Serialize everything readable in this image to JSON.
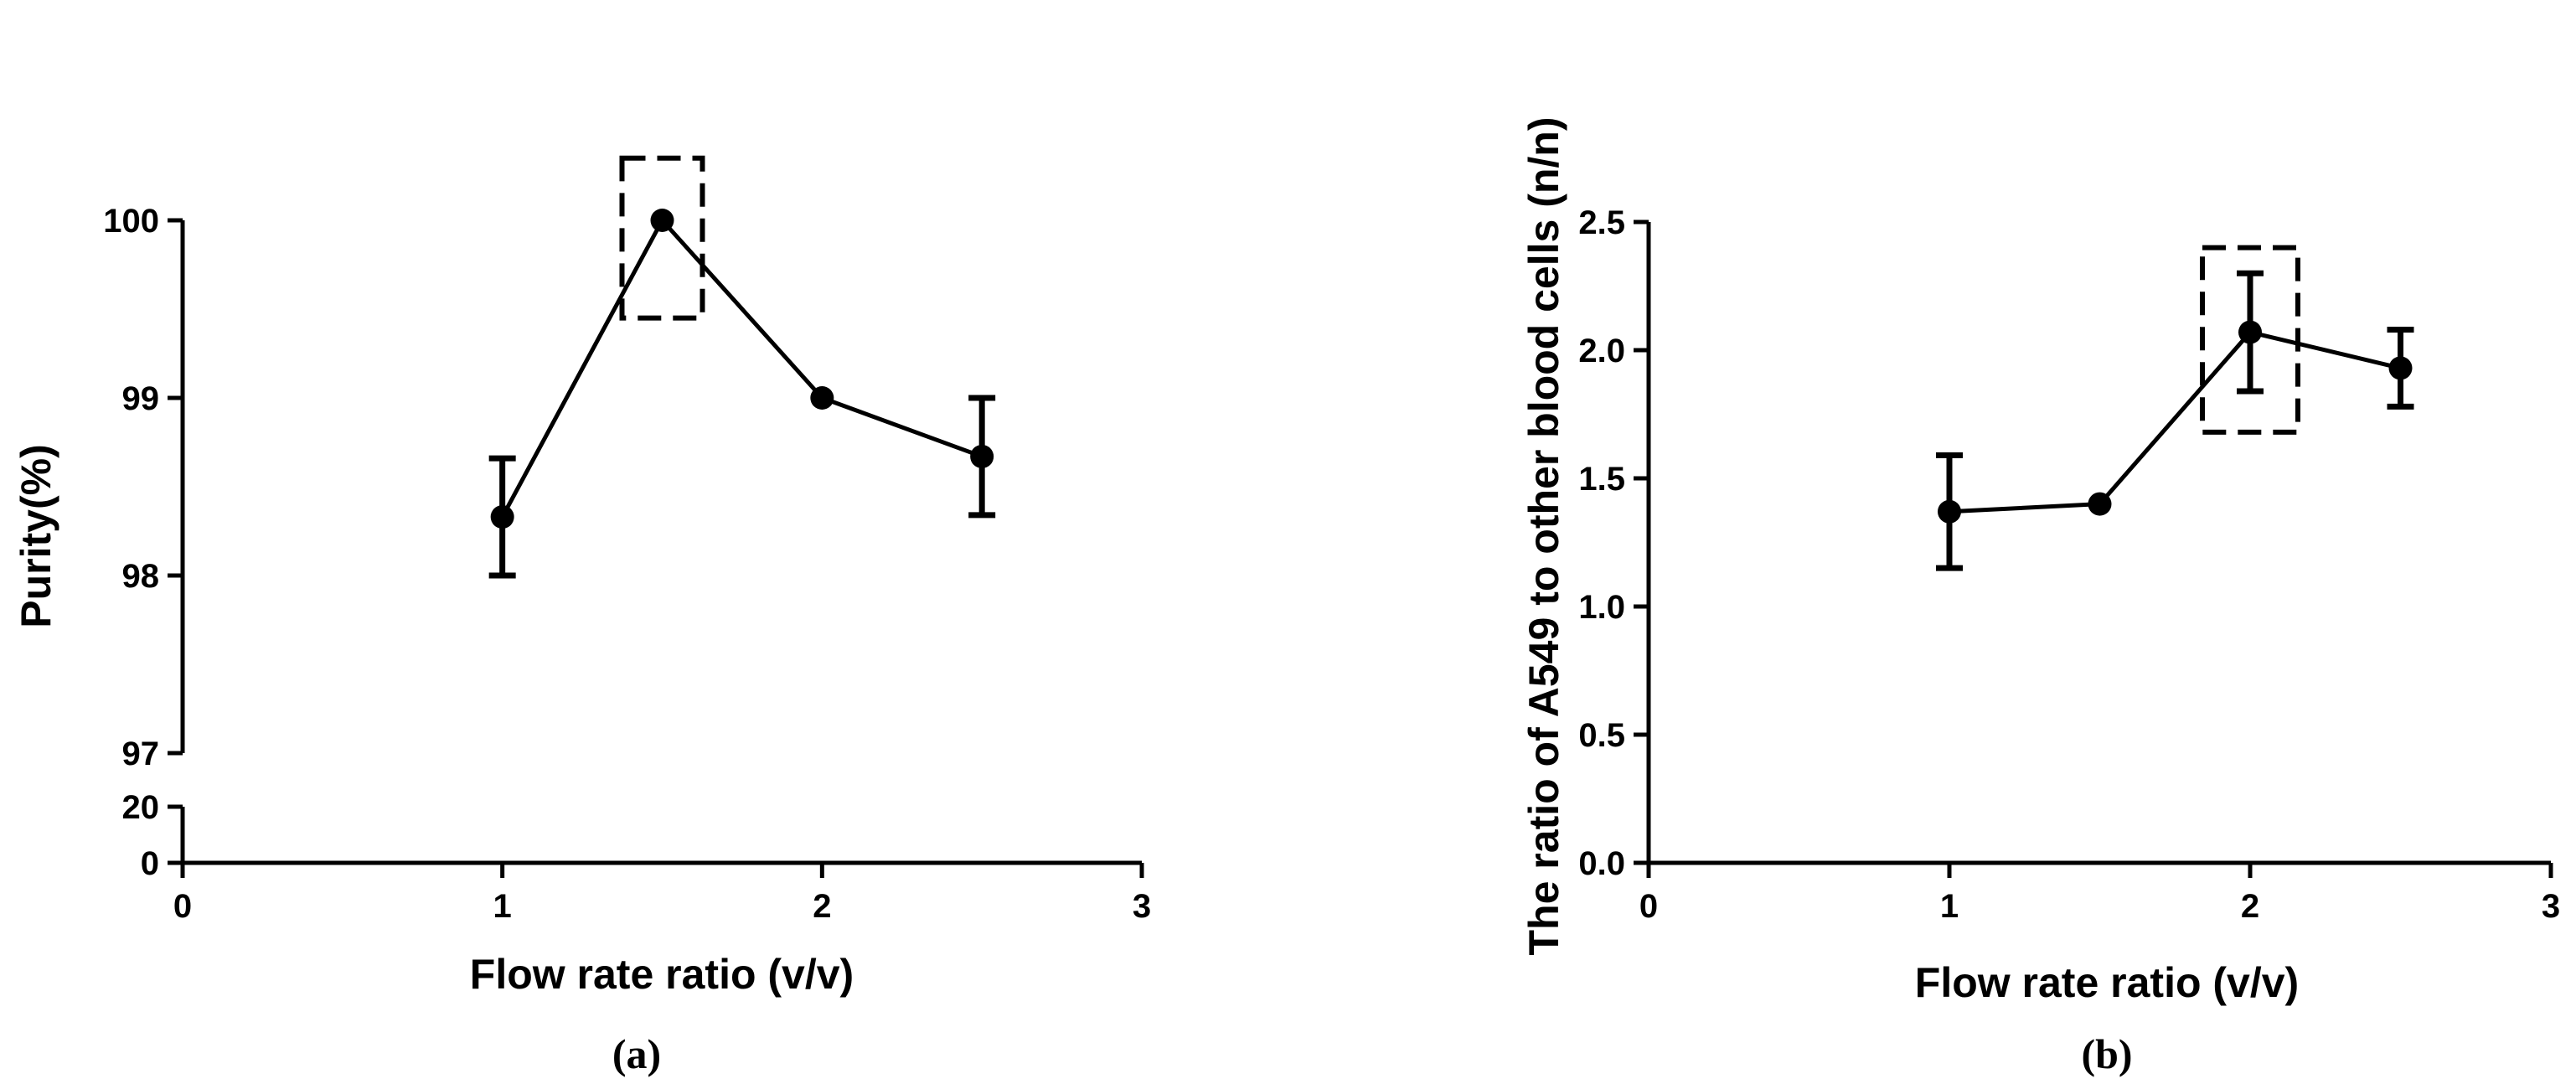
{
  "chart_data": [
    {
      "type": "line",
      "panel_label": "(a)",
      "xlabel": "Flow rate ratio (v/v)",
      "ylabel": "Purity(%)",
      "xlim": [
        0,
        3
      ],
      "x_ticks": [
        "0",
        "1",
        "2",
        "3"
      ],
      "y_axis_break": true,
      "y_ticks_upper": [
        "97",
        "98",
        "99",
        "100"
      ],
      "ylim_upper": [
        97,
        100
      ],
      "y_ticks_lower": [
        "0",
        "20"
      ],
      "ylim_lower": [
        0,
        20
      ],
      "series": [
        {
          "name": "Purity",
          "x": [
            1,
            1.5,
            2,
            2.5
          ],
          "y": [
            98.33,
            100,
            99,
            98.67
          ],
          "error": [
            0.33,
            0,
            0,
            0.33
          ]
        }
      ],
      "highlight": {
        "x": 1.5,
        "y_range": [
          99.45,
          100.35
        ],
        "style": "dashed box"
      }
    },
    {
      "type": "line",
      "panel_label": "(b)",
      "xlabel": "Flow rate ratio (v/v)",
      "ylabel": "The ratio of A549 to other blood cells (n/n)",
      "xlim": [
        0,
        3
      ],
      "x_ticks": [
        "0",
        "1",
        "2",
        "3"
      ],
      "ylim": [
        0,
        2.5
      ],
      "y_ticks": [
        "0.0",
        "0.5",
        "1.0",
        "1.5",
        "2.0",
        "2.5"
      ],
      "series": [
        {
          "name": "Ratio",
          "x": [
            1,
            1.5,
            2,
            2.5
          ],
          "y": [
            1.37,
            1.4,
            2.07,
            1.93
          ],
          "error": [
            0.22,
            0,
            0.23,
            0.15
          ]
        }
      ],
      "highlight": {
        "x": 2,
        "y_range": [
          1.68,
          2.4
        ],
        "style": "dashed box"
      }
    }
  ]
}
